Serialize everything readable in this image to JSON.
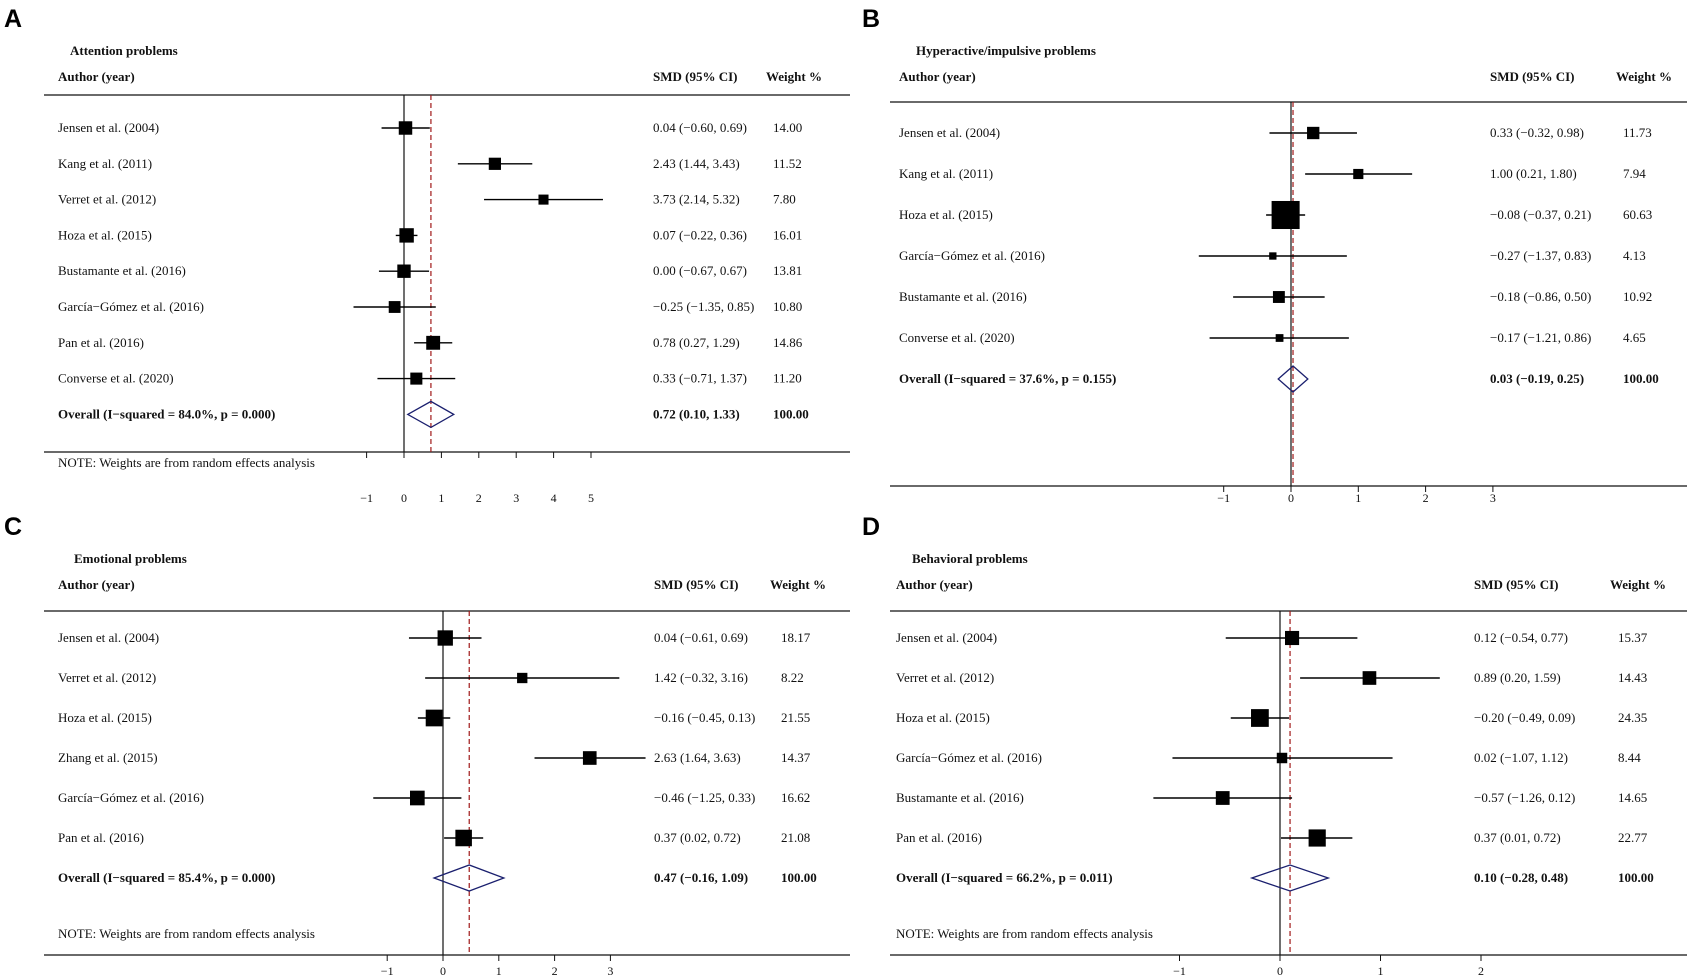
{
  "colors": {
    "marker": "#000000",
    "diamond": "#1a1f6e",
    "refline": "#a01818",
    "ink": "#111111"
  },
  "chart_data": [
    {
      "type": "forest",
      "panel_letter": "A",
      "title": "Attention problems",
      "col_author": "Author (year)",
      "col_smd": "SMD (95% CI)",
      "col_weight": "Weight %",
      "xticks": [
        -1,
        0,
        1,
        2,
        3,
        4,
        5
      ],
      "xtick_labels": [
        "−1",
        "0",
        "1",
        "2",
        "3",
        "4",
        "5"
      ],
      "studies": [
        {
          "author": "Jensen et al. (2004)",
          "smd": 0.04,
          "lo": -0.6,
          "hi": 0.69,
          "ci_text": "0.04 (−0.60, 0.69)",
          "weight": 14.0,
          "weight_text": "14.00"
        },
        {
          "author": "Kang et al. (2011)",
          "smd": 2.43,
          "lo": 1.44,
          "hi": 3.43,
          "ci_text": "2.43 (1.44, 3.43)",
          "weight": 11.52,
          "weight_text": "11.52"
        },
        {
          "author": "Verret et al. (2012)",
          "smd": 3.73,
          "lo": 2.14,
          "hi": 5.32,
          "ci_text": "3.73 (2.14, 5.32)",
          "weight": 7.8,
          "weight_text": "7.80"
        },
        {
          "author": "Hoza et al. (2015)",
          "smd": 0.07,
          "lo": -0.22,
          "hi": 0.36,
          "ci_text": "0.07 (−0.22, 0.36)",
          "weight": 16.01,
          "weight_text": "16.01"
        },
        {
          "author": "Bustamante et al. (2016)",
          "smd": 0.0,
          "lo": -0.67,
          "hi": 0.67,
          "ci_text": "0.00 (−0.67, 0.67)",
          "weight": 13.81,
          "weight_text": "13.81"
        },
        {
          "author": "García−Gómez et al. (2016)",
          "smd": -0.25,
          "lo": -1.35,
          "hi": 0.85,
          "ci_text": "−0.25 (−1.35, 0.85)",
          "weight": 10.8,
          "weight_text": "10.80"
        },
        {
          "author": "Pan et al. (2016)",
          "smd": 0.78,
          "lo": 0.27,
          "hi": 1.29,
          "ci_text": "0.78 (0.27, 1.29)",
          "weight": 14.86,
          "weight_text": "14.86"
        },
        {
          "author": "Converse et al. (2020)",
          "smd": 0.33,
          "lo": -0.71,
          "hi": 1.37,
          "ci_text": "0.33 (−0.71, 1.37)",
          "weight": 11.2,
          "weight_text": "11.20"
        }
      ],
      "overall": {
        "label": "Overall  (I−squared = 84.0%, p = 0.000)",
        "smd": 0.72,
        "lo": 0.1,
        "hi": 1.33,
        "ci_text": "0.72 (0.10, 1.33)",
        "weight_text": "100.00"
      },
      "note": "NOTE: Weights are from random effects analysis"
    },
    {
      "type": "forest",
      "panel_letter": "B",
      "title": "Hyperactive/impulsive problems",
      "col_author": "Author (year)",
      "col_smd": "SMD (95% CI)",
      "col_weight": "Weight %",
      "xticks": [
        -1,
        0,
        1,
        2,
        3
      ],
      "xtick_labels": [
        "−1",
        "0",
        "1",
        "2",
        "3"
      ],
      "studies": [
        {
          "author": "Jensen et al. (2004)",
          "smd": 0.33,
          "lo": -0.32,
          "hi": 0.98,
          "ci_text": "0.33 (−0.32, 0.98)",
          "weight": 11.73,
          "weight_text": "11.73"
        },
        {
          "author": "Kang et al. (2011)",
          "smd": 1.0,
          "lo": 0.21,
          "hi": 1.8,
          "ci_text": "1.00 (0.21, 1.80)",
          "weight": 7.94,
          "weight_text": "7.94"
        },
        {
          "author": "Hoza et al. (2015)",
          "smd": -0.08,
          "lo": -0.37,
          "hi": 0.21,
          "ci_text": "−0.08 (−0.37, 0.21)",
          "weight": 60.63,
          "weight_text": "60.63"
        },
        {
          "author": "García−Gómez et al. (2016)",
          "smd": -0.27,
          "lo": -1.37,
          "hi": 0.83,
          "ci_text": "−0.27 (−1.37, 0.83)",
          "weight": 4.13,
          "weight_text": "4.13"
        },
        {
          "author": "Bustamante et al. (2016)",
          "smd": -0.18,
          "lo": -0.86,
          "hi": 0.5,
          "ci_text": "−0.18 (−0.86, 0.50)",
          "weight": 10.92,
          "weight_text": "10.92"
        },
        {
          "author": "Converse et al. (2020)",
          "smd": -0.17,
          "lo": -1.21,
          "hi": 0.86,
          "ci_text": "−0.17 (−1.21, 0.86)",
          "weight": 4.65,
          "weight_text": "4.65"
        }
      ],
      "overall": {
        "label": "Overall  (I−squared = 37.6%, p = 0.155)",
        "smd": 0.03,
        "lo": -0.19,
        "hi": 0.25,
        "ci_text": "0.03 (−0.19, 0.25)",
        "weight_text": "100.00"
      },
      "note": ""
    },
    {
      "type": "forest",
      "panel_letter": "C",
      "title": "Emotional problems",
      "col_author": "Author (year)",
      "col_smd": "SMD (95% CI)",
      "col_weight": "Weight %",
      "xticks": [
        -1,
        0,
        1,
        2,
        3
      ],
      "xtick_labels": [
        "−1",
        "0",
        "1",
        "2",
        "3"
      ],
      "studies": [
        {
          "author": "Jensen et al. (2004)",
          "smd": 0.04,
          "lo": -0.61,
          "hi": 0.69,
          "ci_text": "0.04 (−0.61, 0.69)",
          "weight": 18.17,
          "weight_text": "18.17"
        },
        {
          "author": "Verret et al. (2012)",
          "smd": 1.42,
          "lo": -0.32,
          "hi": 3.16,
          "ci_text": "1.42 (−0.32, 3.16)",
          "weight": 8.22,
          "weight_text": "8.22"
        },
        {
          "author": "Hoza et al. (2015)",
          "smd": -0.16,
          "lo": -0.45,
          "hi": 0.13,
          "ci_text": "−0.16 (−0.45, 0.13)",
          "weight": 21.55,
          "weight_text": "21.55"
        },
        {
          "author": "Zhang et al. (2015)",
          "smd": 2.63,
          "lo": 1.64,
          "hi": 3.63,
          "ci_text": "2.63 (1.64, 3.63)",
          "weight": 14.37,
          "weight_text": "14.37"
        },
        {
          "author": "García−Gómez et al. (2016)",
          "smd": -0.46,
          "lo": -1.25,
          "hi": 0.33,
          "ci_text": "−0.46 (−1.25, 0.33)",
          "weight": 16.62,
          "weight_text": "16.62"
        },
        {
          "author": "Pan et al. (2016)",
          "smd": 0.37,
          "lo": 0.02,
          "hi": 0.72,
          "ci_text": "0.37 (0.02, 0.72)",
          "weight": 21.08,
          "weight_text": "21.08"
        }
      ],
      "overall": {
        "label": "Overall  (I−squared = 85.4%, p = 0.000)",
        "smd": 0.47,
        "lo": -0.16,
        "hi": 1.09,
        "ci_text": "0.47 (−0.16, 1.09)",
        "weight_text": "100.00"
      },
      "note": "NOTE: Weights are from random effects analysis"
    },
    {
      "type": "forest",
      "panel_letter": "D",
      "title": "Behavioral problems",
      "col_author": "Author (year)",
      "col_smd": "SMD (95% CI)",
      "col_weight": "Weight %",
      "xticks": [
        -1,
        0,
        1,
        2
      ],
      "xtick_labels": [
        "−1",
        "0",
        "1",
        "2"
      ],
      "studies": [
        {
          "author": "Jensen et al. (2004)",
          "smd": 0.12,
          "lo": -0.54,
          "hi": 0.77,
          "ci_text": "0.12 (−0.54, 0.77)",
          "weight": 15.37,
          "weight_text": "15.37"
        },
        {
          "author": "Verret et al. (2012)",
          "smd": 0.89,
          "lo": 0.2,
          "hi": 1.59,
          "ci_text": "0.89 (0.20, 1.59)",
          "weight": 14.43,
          "weight_text": "14.43"
        },
        {
          "author": "Hoza et al. (2015)",
          "smd": -0.2,
          "lo": -0.49,
          "hi": 0.09,
          "ci_text": "−0.20 (−0.49, 0.09)",
          "weight": 24.35,
          "weight_text": "24.35"
        },
        {
          "author": "García−Gómez et al. (2016)",
          "smd": 0.02,
          "lo": -1.07,
          "hi": 1.12,
          "ci_text": "0.02 (−1.07, 1.12)",
          "weight": 8.44,
          "weight_text": "8.44"
        },
        {
          "author": "Bustamante et al. (2016)",
          "smd": -0.57,
          "lo": -1.26,
          "hi": 0.12,
          "ci_text": "−0.57 (−1.26, 0.12)",
          "weight": 14.65,
          "weight_text": "14.65"
        },
        {
          "author": "Pan et al. (2016)",
          "smd": 0.37,
          "lo": 0.01,
          "hi": 0.72,
          "ci_text": "0.37 (0.01, 0.72)",
          "weight": 22.77,
          "weight_text": "22.77"
        }
      ],
      "overall": {
        "label": "Overall  (I−squared = 66.2%, p = 0.011)",
        "smd": 0.1,
        "lo": -0.28,
        "hi": 0.48,
        "ci_text": "0.10 (−0.28, 0.48)",
        "weight_text": "100.00"
      },
      "note": "NOTE: Weights are from random effects analysis"
    }
  ]
}
